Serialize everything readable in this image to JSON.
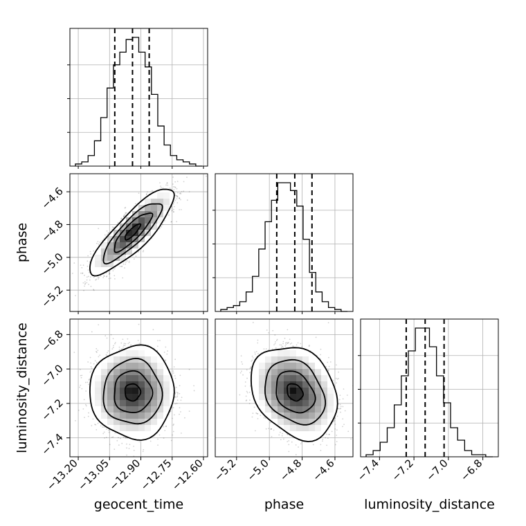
{
  "chart_data": {
    "type": "corner",
    "parameters": [
      "geocent_time",
      "phase",
      "luminosity_distance"
    ],
    "axis_labels": {
      "geocent_time": "geocent_time",
      "phase": "phase",
      "luminosity_distance": "luminosity_distance"
    },
    "ranges": {
      "geocent_time": [
        -13.24,
        -12.58
      ],
      "phase": [
        -5.33,
        -4.49
      ],
      "luminosity_distance": [
        -7.51,
        -6.71
      ]
    },
    "ticks": {
      "geocent_time": {
        "values": [
          -13.2,
          -13.05,
          -12.9,
          -12.75,
          -12.6
        ],
        "labels": [
          "−13.20",
          "−13.05",
          "−12.90",
          "−12.75",
          "−12.60"
        ]
      },
      "phase": {
        "values": [
          -5.2,
          -5.0,
          -4.8,
          -4.6
        ],
        "labels": [
          "−5.2",
          "−5.0",
          "−4.8",
          "−4.6"
        ]
      },
      "luminosity_distance": {
        "values": [
          -7.4,
          -7.2,
          -7.0,
          -6.8
        ],
        "labels": [
          "−7.4",
          "−7.2",
          "−7.0",
          "−6.8"
        ]
      }
    },
    "quantiles": {
      "geocent_time": [
        -13.025,
        -12.94,
        -12.86
      ],
      "phase": [
        -4.955,
        -4.845,
        -4.74
      ],
      "luminosity_distance": [
        -7.245,
        -7.135,
        -7.025
      ]
    },
    "histograms": {
      "geocent_time": [
        1,
        2,
        5,
        12,
        23,
        37,
        48,
        54,
        60,
        61,
        54,
        47,
        34,
        19,
        10,
        5,
        3,
        2,
        1,
        0
      ],
      "phase": [
        1,
        2,
        3,
        5,
        10,
        18,
        32,
        46,
        57,
        66,
        66,
        62,
        54,
        37,
        20,
        10,
        5,
        2,
        1,
        0
      ],
      "luminosity_distance": [
        1,
        3,
        7,
        14,
        25,
        39,
        51,
        62,
        62,
        53,
        39,
        26,
        14,
        8,
        3,
        1,
        1,
        0
      ]
    },
    "correlations": {
      "phase|geocent_time": 0.85,
      "luminosity_distance|geocent_time": 0.0,
      "luminosity_distance|phase": -0.25
    },
    "grid": true
  }
}
